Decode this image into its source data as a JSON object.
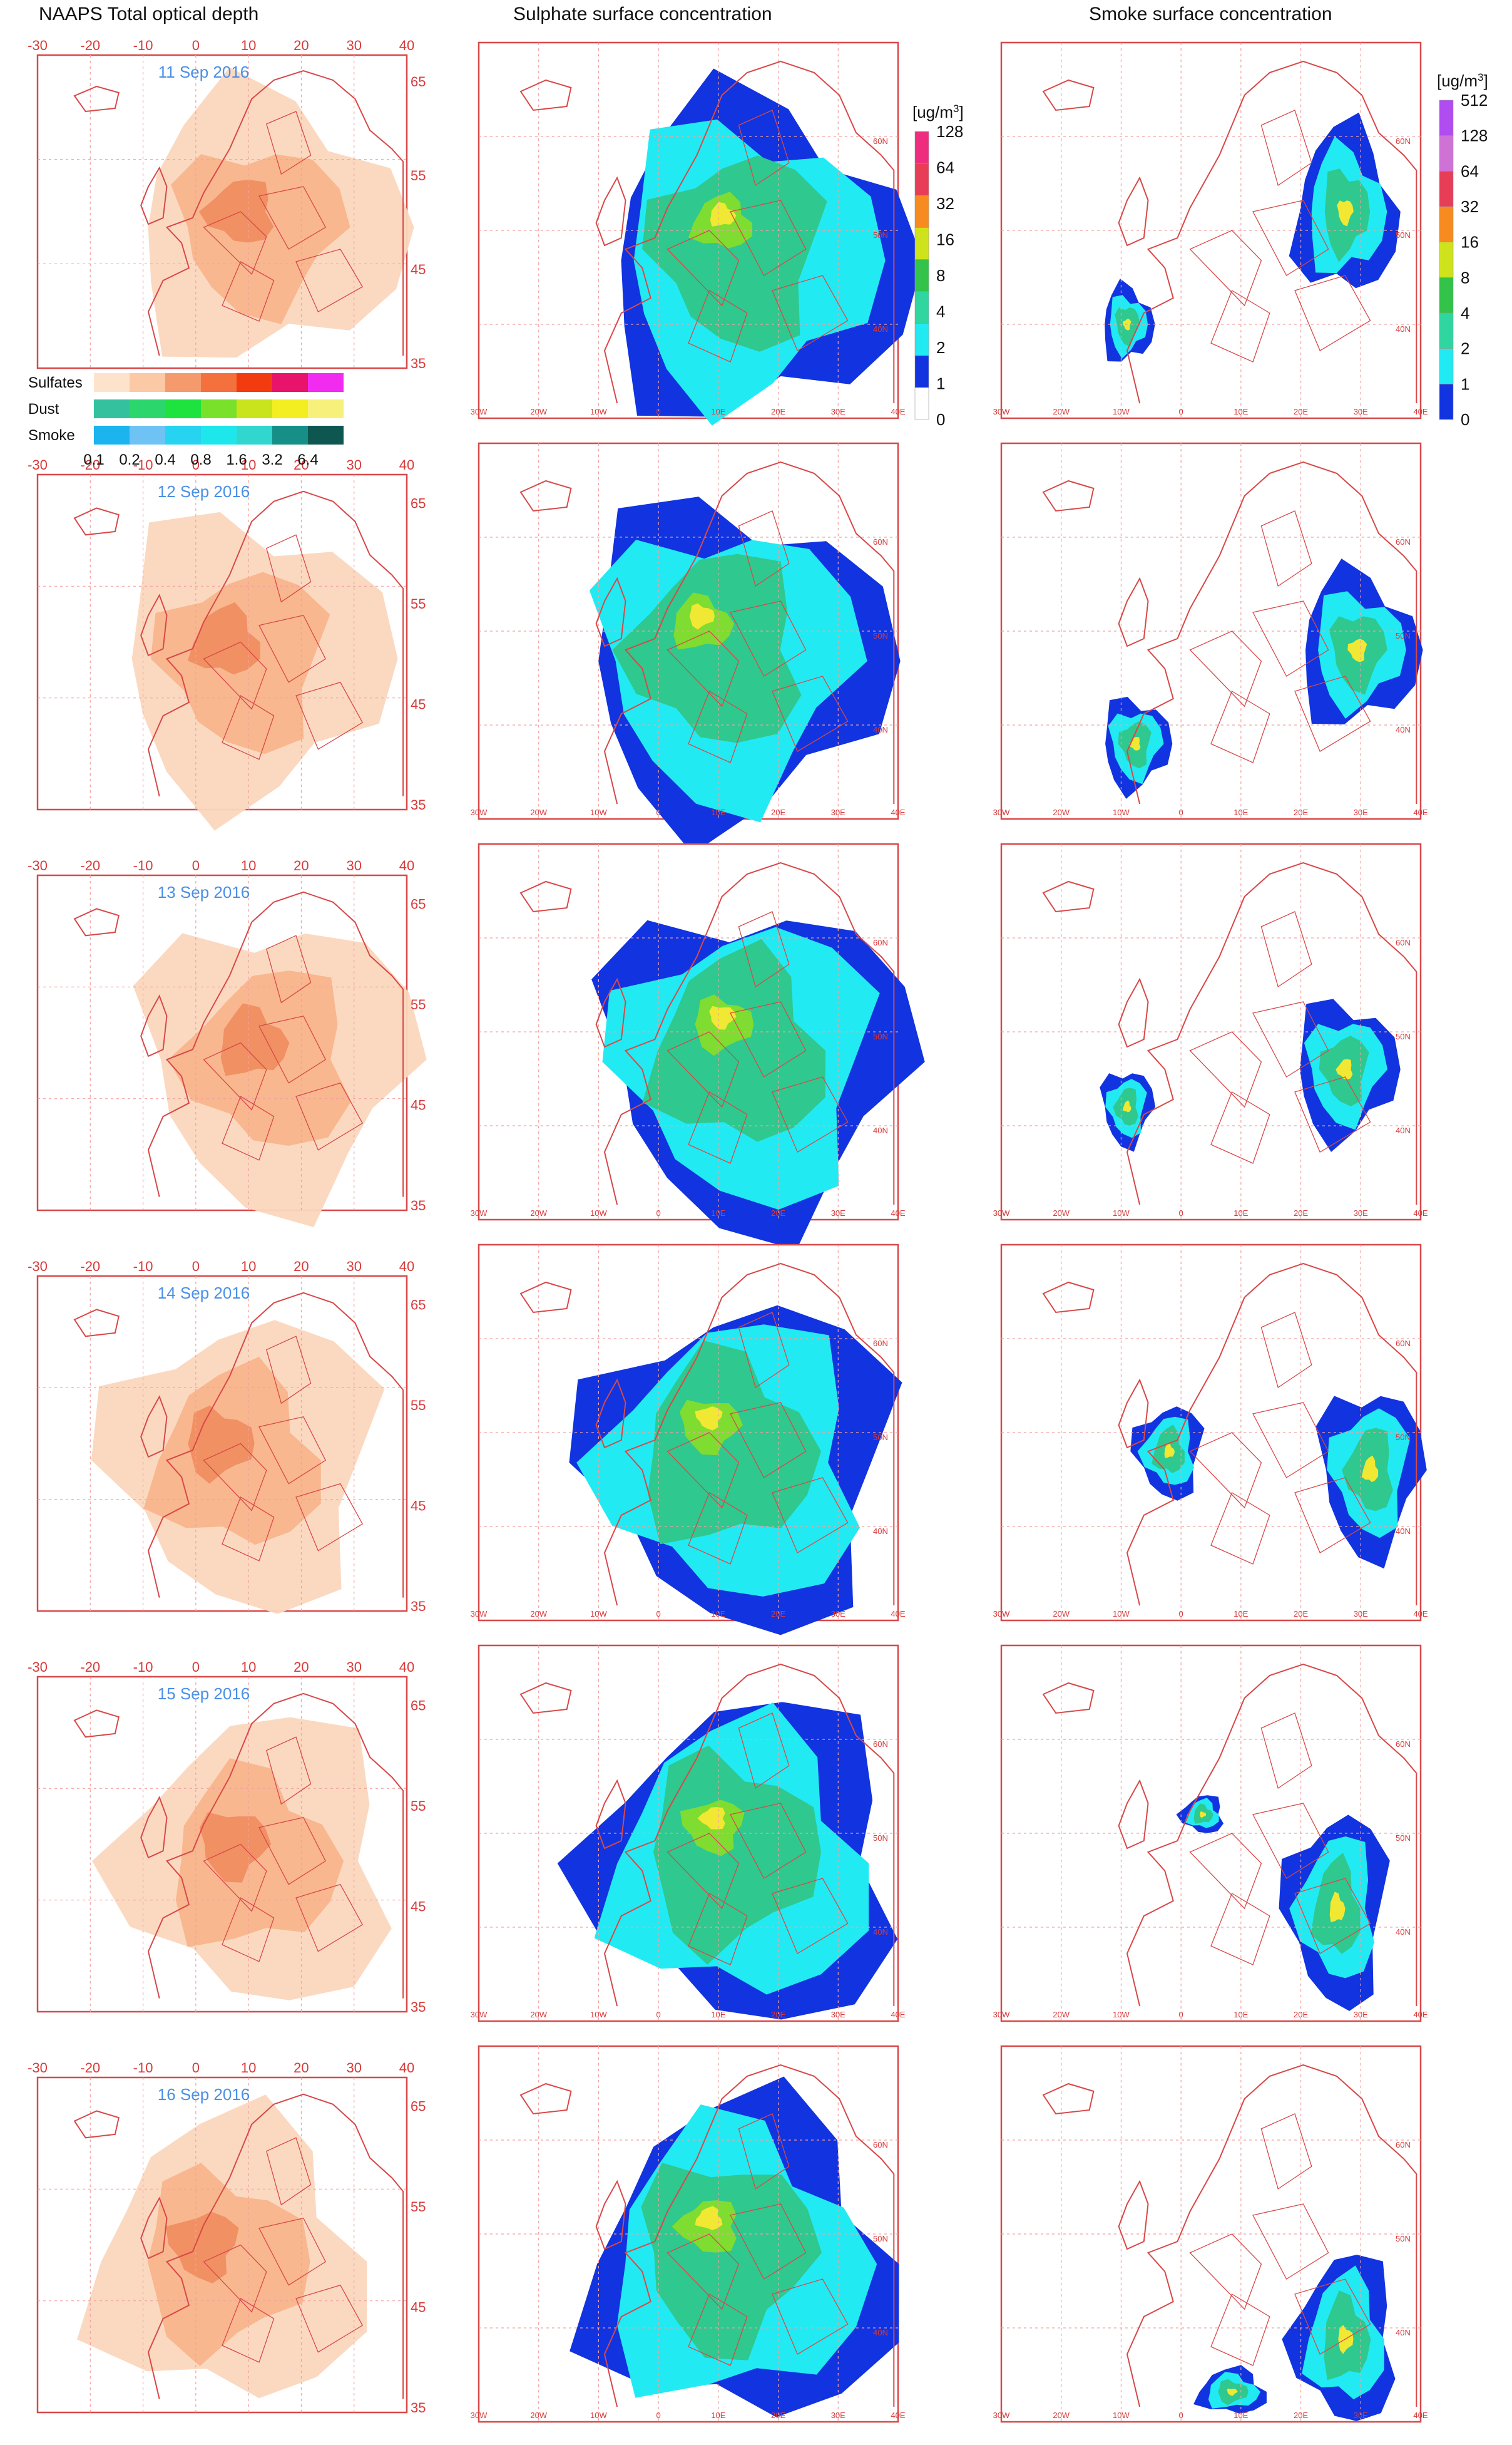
{
  "headers": {
    "col1": "NAAPS  Total optical depth",
    "col2": "Sulphate surface concentration",
    "col3": "Smoke surface concentration"
  },
  "dates": [
    "11 Sep 2016",
    "12 Sep 2016",
    "13 Sep 2016",
    "14 Sep 2016",
    "15 Sep 2016",
    "16 Sep 2016"
  ],
  "aod_axis": {
    "lon_ticks": [
      "-30",
      "-20",
      "-10",
      "0",
      "10",
      "20",
      "30",
      "40"
    ],
    "lat_ticks": [
      "65",
      "55",
      "45",
      "35"
    ]
  },
  "conc_axis": {
    "lon_ticks": [
      "30W",
      "20W",
      "10W",
      "0",
      "10E",
      "20E",
      "30E",
      "40E"
    ],
    "lat_ticks": [
      "60N",
      "50N",
      "40N"
    ]
  },
  "aod_legend": {
    "rows": [
      {
        "label": "Sulfates",
        "colors": [
          "#fde3cc",
          "#fbc9a6",
          "#f59a6d",
          "#f4713e",
          "#f23c10",
          "#e8136b",
          "#f12bef"
        ]
      },
      {
        "label": "Dust",
        "colors": [
          "#33c29d",
          "#2bd66c",
          "#1ee33e",
          "#7ae12a",
          "#c9e31c",
          "#f2ee22",
          "#f7f17b"
        ]
      },
      {
        "label": "Smoke",
        "colors": [
          "#1bb4ef",
          "#6fc3f4",
          "#26d3f0",
          "#1ee7ec",
          "#31d6cf",
          "#158f87",
          "#0e5750"
        ]
      }
    ],
    "values": [
      "0.1",
      "0.2",
      "0.4",
      "0.8",
      "1.6",
      "3.2",
      "6.4"
    ]
  },
  "sulphate_legend": {
    "unit_prefix": "[ug/m",
    "unit_exp": "3",
    "unit_suffix": "]",
    "levels": [
      "0",
      "1",
      "2",
      "4",
      "8",
      "16",
      "32",
      "64",
      "128"
    ],
    "colors": [
      "#ffffff",
      "#1133e0",
      "#22eaf2",
      "#2fd69f",
      "#33c24a",
      "#cfe31d",
      "#f78b20",
      "#e83d57",
      "#ee2d7e"
    ]
  },
  "smoke_legend": {
    "unit_prefix": "[ug/m",
    "unit_exp": "3",
    "unit_suffix": "]",
    "levels": [
      "0",
      "1",
      "2",
      "4",
      "8",
      "16",
      "32",
      "64",
      "128",
      "512"
    ],
    "colors": [
      "#1133e0",
      "#22eaf2",
      "#2fd69f",
      "#33c24a",
      "#cfe31d",
      "#f78b20",
      "#e83d57",
      "#ce72d6",
      "#b04cf0"
    ]
  },
  "colors": {
    "frame": "#d84848",
    "grid": "#f2a0a0",
    "date_text": "#4a8fe6",
    "aod_light": "#fbd7bd",
    "aod_mid": "#f7b28a",
    "aod_dark": "#f08a5c",
    "sulf_blue": "#1133e0",
    "sulf_cyan": "#22eaf2",
    "sulf_green": "#2fc88f",
    "sulf_lime": "#7fdc30",
    "sulf_yellow": "#f0e832"
  }
}
